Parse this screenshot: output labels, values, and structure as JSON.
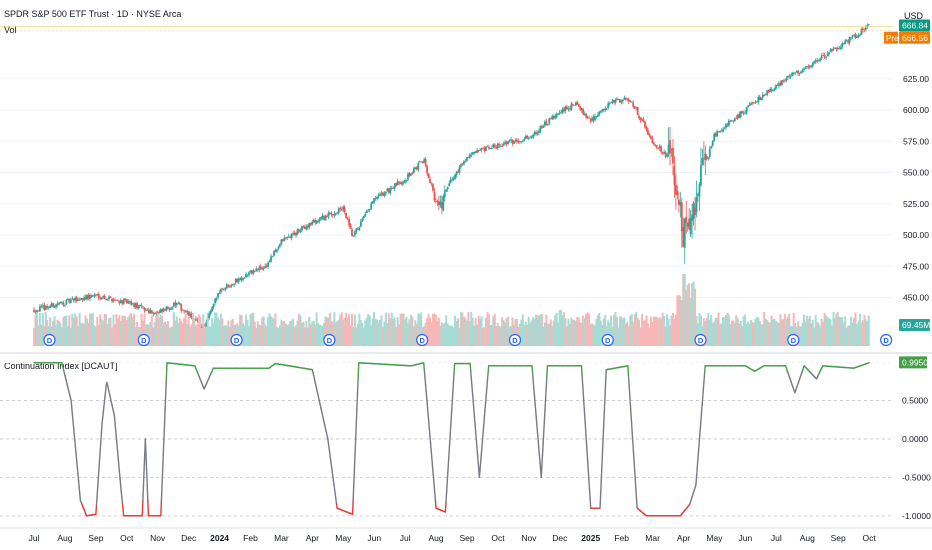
{
  "header": {
    "title": "SPDR S&P 500 ETF Trust · 1D · NYSE Arca",
    "volume_label": "Vol",
    "currency": "USD"
  },
  "colors": {
    "up": "#26a69a",
    "down": "#ef5350",
    "vol_up": "#a6dcd6",
    "vol_down": "#f7b7b6",
    "line_bull": "#43a047",
    "line_neutral": "#787b86",
    "line_bear": "#e53935",
    "price_badge": "#089981",
    "pre_badge": "#f57c00",
    "vol_badge": "#26a69a",
    "ci_badge": "#43a047",
    "dividend": "#2962ff"
  },
  "price_axis": {
    "ticks": [
      "450.00",
      "475.00",
      "500.00",
      "525.00",
      "550.00",
      "575.00",
      "600.00",
      "625.00"
    ],
    "tick_values": [
      450,
      475,
      500,
      525,
      550,
      575,
      600,
      625
    ],
    "visible_range": [
      408,
      672
    ]
  },
  "badges": {
    "last_price": "666.84",
    "pre_label": "Pre",
    "pre_price": "666.56",
    "volume": "69.45M",
    "indicator": "0.9950"
  },
  "indicator": {
    "title": "Continuation Index [DCAUT]",
    "ticks": [
      "0.5000",
      "0.0000",
      "-0.5000",
      "-1.0000"
    ],
    "tick_values": [
      0.5,
      0.0,
      -0.5,
      -1.0
    ],
    "range": [
      -1.08,
      1.0
    ]
  },
  "time_axis": {
    "labels": [
      "Jul",
      "Aug",
      "Sep",
      "Oct",
      "Nov",
      "Dec",
      "2024",
      "Feb",
      "Mar",
      "Apr",
      "May",
      "Jun",
      "Jul",
      "Aug",
      "Sep",
      "Oct",
      "Nov",
      "Dec",
      "2025",
      "Feb",
      "Mar",
      "Apr",
      "May",
      "Jun",
      "Jul",
      "Aug",
      "Sep",
      "Oct"
    ],
    "bold": [
      "2024",
      "2025"
    ]
  },
  "dividends": {
    "marker_label": "D"
  },
  "chart_data": {
    "type": "candlestick",
    "title": "SPDR S&P 500 ETF Trust · 1D · NYSE Arca",
    "price_anchors": [
      {
        "t": 0,
        "v": 440
      },
      {
        "t": 2,
        "v": 452
      },
      {
        "t": 3,
        "v": 446
      },
      {
        "t": 4,
        "v": 437
      },
      {
        "t": 4.6,
        "v": 445
      },
      {
        "t": 5.1,
        "v": 434
      },
      {
        "t": 5.5,
        "v": 425
      },
      {
        "t": 6,
        "v": 456
      },
      {
        "t": 7,
        "v": 470
      },
      {
        "t": 7.5,
        "v": 475
      },
      {
        "t": 8,
        "v": 495
      },
      {
        "t": 9,
        "v": 510
      },
      {
        "t": 10,
        "v": 521
      },
      {
        "t": 10.3,
        "v": 498
      },
      {
        "t": 11,
        "v": 528
      },
      {
        "t": 12,
        "v": 545
      },
      {
        "t": 12.6,
        "v": 560
      },
      {
        "t": 13.1,
        "v": 520
      },
      {
        "t": 13.4,
        "v": 540
      },
      {
        "t": 14,
        "v": 563
      },
      {
        "t": 15,
        "v": 572
      },
      {
        "t": 16,
        "v": 578
      },
      {
        "t": 17,
        "v": 598
      },
      {
        "t": 17.5,
        "v": 605
      },
      {
        "t": 18,
        "v": 592
      },
      {
        "t": 18.8,
        "v": 608
      },
      {
        "t": 19.3,
        "v": 608
      },
      {
        "t": 20,
        "v": 575
      },
      {
        "t": 20.6,
        "v": 560
      },
      {
        "t": 21,
        "v": 500
      },
      {
        "t": 21.5,
        "v": 540
      },
      {
        "t": 22,
        "v": 580
      },
      {
        "t": 23,
        "v": 600
      },
      {
        "t": 24,
        "v": 620
      },
      {
        "t": 25,
        "v": 635
      },
      {
        "t": 26,
        "v": 650
      },
      {
        "t": 27,
        "v": 667
      }
    ],
    "continuation_index": [
      {
        "t": 0,
        "v": 0.99
      },
      {
        "t": 0.9,
        "v": 0.99
      },
      {
        "t": 1.2,
        "v": 0.5
      },
      {
        "t": 1.5,
        "v": -0.8
      },
      {
        "t": 1.7,
        "v": -1.0
      },
      {
        "t": 2,
        "v": -0.98
      },
      {
        "t": 2.2,
        "v": 0.2
      },
      {
        "t": 2.35,
        "v": 0.75
      },
      {
        "t": 2.6,
        "v": 0.3
      },
      {
        "t": 2.8,
        "v": -0.6
      },
      {
        "t": 2.9,
        "v": -1.0
      },
      {
        "t": 3.5,
        "v": -1.0
      },
      {
        "t": 3.6,
        "v": 0.0
      },
      {
        "t": 3.7,
        "v": -1.0
      },
      {
        "t": 4.1,
        "v": -1.0
      },
      {
        "t": 4.3,
        "v": 0.99
      },
      {
        "t": 5.2,
        "v": 0.95
      },
      {
        "t": 5.5,
        "v": 0.65
      },
      {
        "t": 5.8,
        "v": 0.92
      },
      {
        "t": 7.6,
        "v": 0.92
      },
      {
        "t": 7.8,
        "v": 0.98
      },
      {
        "t": 9,
        "v": 0.9
      },
      {
        "t": 9.5,
        "v": 0.0
      },
      {
        "t": 9.8,
        "v": -0.9
      },
      {
        "t": 10.3,
        "v": -0.98
      },
      {
        "t": 10.5,
        "v": 0.99
      },
      {
        "t": 12.2,
        "v": 0.95
      },
      {
        "t": 12.6,
        "v": 0.99
      },
      {
        "t": 13.0,
        "v": -0.9
      },
      {
        "t": 13.3,
        "v": -0.95
      },
      {
        "t": 13.6,
        "v": 0.98
      },
      {
        "t": 14.1,
        "v": 0.98
      },
      {
        "t": 14.4,
        "v": -0.5
      },
      {
        "t": 14.7,
        "v": 0.95
      },
      {
        "t": 16.1,
        "v": 0.95
      },
      {
        "t": 16.4,
        "v": -0.5
      },
      {
        "t": 16.6,
        "v": 0.95
      },
      {
        "t": 17.7,
        "v": 0.95
      },
      {
        "t": 18.0,
        "v": -0.9
      },
      {
        "t": 18.3,
        "v": -0.9
      },
      {
        "t": 18.5,
        "v": 0.9
      },
      {
        "t": 19.2,
        "v": 0.95
      },
      {
        "t": 19.5,
        "v": -0.9
      },
      {
        "t": 19.8,
        "v": -1.0
      },
      {
        "t": 20.9,
        "v": -1.0
      },
      {
        "t": 21.2,
        "v": -0.85
      },
      {
        "t": 21.4,
        "v": -0.6
      },
      {
        "t": 21.7,
        "v": 0.95
      },
      {
        "t": 23.0,
        "v": 0.95
      },
      {
        "t": 23.3,
        "v": 0.88
      },
      {
        "t": 23.6,
        "v": 0.95
      },
      {
        "t": 24.3,
        "v": 0.95
      },
      {
        "t": 24.6,
        "v": 0.6
      },
      {
        "t": 24.9,
        "v": 0.95
      },
      {
        "t": 25.3,
        "v": 0.78
      },
      {
        "t": 25.5,
        "v": 0.95
      },
      {
        "t": 26.5,
        "v": 0.92
      },
      {
        "t": 27,
        "v": 0.99
      }
    ],
    "volume_spikes": [
      {
        "t": 21.0,
        "v": 4.0
      },
      {
        "t": 21.15,
        "v": 3.4
      },
      {
        "t": 17.0,
        "v": 2.0
      },
      {
        "t": 11.9,
        "v": 1.8
      },
      {
        "t": 15.6,
        "v": 1.5
      },
      {
        "t": 22.3,
        "v": 1.6
      },
      {
        "t": 26.1,
        "v": 1.6
      },
      {
        "t": 23.9,
        "v": 1.5
      }
    ],
    "dividend_markers": [
      0.5,
      3.55,
      6.55,
      9.55,
      12.55,
      15.55,
      18.55,
      21.55,
      24.55,
      27.55
    ],
    "ylabel": "USD"
  }
}
